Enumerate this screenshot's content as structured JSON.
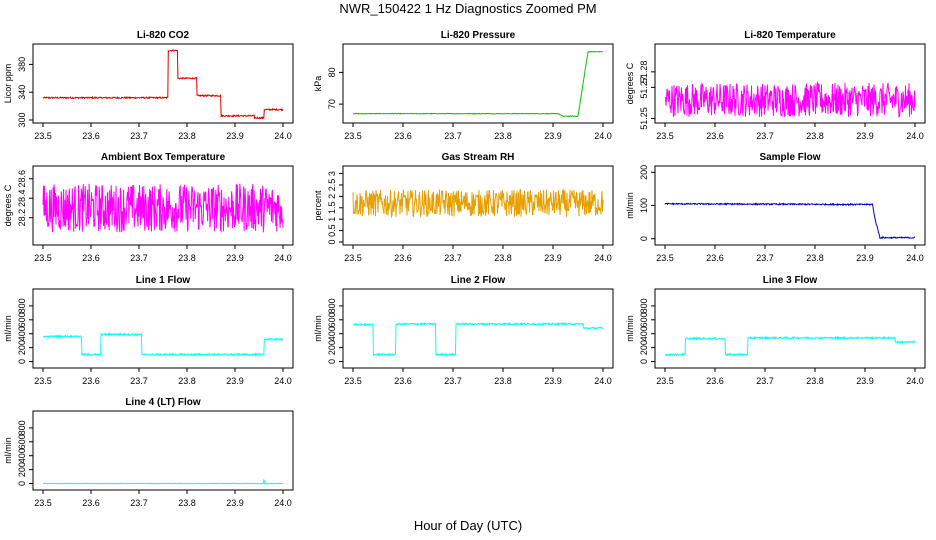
{
  "figure": {
    "title": "NWR_150422  1 Hz Diagnostics Zoomed PM",
    "xlabel": "Hour of Day (UTC)"
  },
  "colors": {
    "red": "#e00000",
    "green": "#00c800",
    "magenta": "#ff00ff",
    "orange": "#e6a000",
    "blue": "#0000cc",
    "cyan": "#00ffff"
  },
  "chart_data": [
    {
      "id": "co2",
      "type": "line",
      "title": "Li-820 CO2",
      "ylabel": "Licor ppm",
      "color": "red",
      "xlim": [
        23.5,
        24.0
      ],
      "ylim": [
        300,
        405
      ],
      "xticks": [
        "23.5",
        "23.6",
        "23.7",
        "23.8",
        "23.9",
        "24.0"
      ],
      "yticks": [
        300,
        340,
        380
      ],
      "x": [
        23.5,
        23.76,
        23.761,
        23.78,
        23.781,
        23.82,
        23.821,
        23.87,
        23.871,
        23.94,
        23.941,
        23.96,
        23.961,
        24.0
      ],
      "y": [
        332,
        332,
        400,
        400,
        360,
        360,
        335,
        335,
        306,
        306,
        303,
        303,
        315,
        315
      ],
      "noise": 1
    },
    {
      "id": "pressure",
      "type": "line",
      "title": "Li-820 Pressure",
      "ylabel": "kPa",
      "color": "green",
      "xlim": [
        23.5,
        24.0
      ],
      "ylim": [
        65,
        88
      ],
      "xticks": [
        "23.5",
        "23.6",
        "23.7",
        "23.8",
        "23.9",
        "24.0"
      ],
      "yticks": [
        70,
        80
      ],
      "x": [
        23.5,
        23.91,
        23.92,
        23.95,
        23.97,
        24.0
      ],
      "y": [
        67.0,
        67.0,
        66.2,
        66.2,
        86.5,
        86.5
      ],
      "noise": 0.1
    },
    {
      "id": "li820-temp",
      "type": "line",
      "title": "Li-820 Temperature",
      "ylabel": "degrees C",
      "color": "magenta",
      "xlim": [
        23.5,
        24.0
      ],
      "ylim": [
        51.249,
        51.296
      ],
      "xticks": [
        "23.5",
        "23.6",
        "23.7",
        "23.8",
        "23.9",
        "24.0"
      ],
      "yticks": [
        51.25,
        51.27,
        51.28
      ],
      "x": [
        23.5,
        24.0
      ],
      "y": [
        51.262,
        51.262
      ],
      "noise": 0.011
    },
    {
      "id": "box-temp",
      "type": "line",
      "title": "Ambient Box Temperature",
      "ylabel": "degrees C",
      "color": "magenta",
      "xlim": [
        23.5,
        24.0
      ],
      "ylim": [
        27.95,
        28.7
      ],
      "xticks": [
        "23.5",
        "23.6",
        "23.7",
        "23.8",
        "23.9",
        "24.0"
      ],
      "yticks": [
        28.2,
        28.4,
        28.6
      ],
      "x": [
        23.5,
        24.0
      ],
      "y": [
        28.3,
        28.3
      ],
      "noise": 0.25
    },
    {
      "id": "rh",
      "type": "line",
      "title": "Gas Stream RH",
      "ylabel": "percent",
      "color": "orange",
      "xlim": [
        23.5,
        24.0
      ],
      "ylim": [
        0,
        3.2
      ],
      "xticks": [
        "23.5",
        "23.6",
        "23.7",
        "23.8",
        "23.9",
        "24.0"
      ],
      "yticks": [
        0.0,
        0.5,
        1.0,
        1.5,
        2.0,
        2.5,
        3.0
      ],
      "x": [
        23.5,
        24.0
      ],
      "y": [
        1.7,
        1.7
      ],
      "noise": 0.6
    },
    {
      "id": "sample-flow",
      "type": "line",
      "title": "Sample Flow",
      "ylabel": "ml/min",
      "color": "blue",
      "xlim": [
        23.5,
        24.0
      ],
      "ylim": [
        -10,
        210
      ],
      "xticks": [
        "23.5",
        "23.6",
        "23.7",
        "23.8",
        "23.9",
        "24.0"
      ],
      "yticks": [
        0,
        100,
        200
      ],
      "x": [
        23.5,
        23.915,
        23.92,
        23.93,
        24.0
      ],
      "y": [
        105,
        103,
        60,
        3,
        3
      ],
      "noise": 2
    },
    {
      "id": "line1",
      "type": "line",
      "title": "Line 1 Flow",
      "ylabel": "ml/min",
      "color": "cyan",
      "xlim": [
        23.5,
        24.0
      ],
      "ylim": [
        -50,
        1000
      ],
      "xticks": [
        "23.5",
        "23.6",
        "23.7",
        "23.8",
        "23.9",
        "24.0"
      ],
      "yticks": [
        0,
        200,
        400,
        600,
        800
      ],
      "x": [
        23.5,
        23.58,
        23.581,
        23.62,
        23.621,
        23.705,
        23.706,
        23.96,
        23.961,
        24.0
      ],
      "y": [
        360,
        360,
        100,
        100,
        390,
        390,
        100,
        100,
        320,
        320
      ],
      "noise": 12
    },
    {
      "id": "line2",
      "type": "line",
      "title": "Line 2 Flow",
      "ylabel": "ml/min",
      "color": "cyan",
      "xlim": [
        23.5,
        24.0
      ],
      "ylim": [
        -50,
        1000
      ],
      "xticks": [
        "23.5",
        "23.6",
        "23.7",
        "23.8",
        "23.9",
        "24.0"
      ],
      "yticks": [
        0,
        200,
        400,
        600,
        800
      ],
      "x": [
        23.5,
        23.54,
        23.541,
        23.585,
        23.586,
        23.665,
        23.666,
        23.705,
        23.706,
        23.96,
        23.961,
        24.0
      ],
      "y": [
        530,
        530,
        100,
        100,
        540,
        540,
        100,
        100,
        540,
        540,
        480,
        480
      ],
      "noise": 12
    },
    {
      "id": "line3",
      "type": "line",
      "title": "Line 3 Flow",
      "ylabel": "ml/min",
      "color": "cyan",
      "xlim": [
        23.5,
        24.0
      ],
      "ylim": [
        -50,
        1000
      ],
      "xticks": [
        "23.5",
        "23.6",
        "23.7",
        "23.8",
        "23.9",
        "24.0"
      ],
      "yticks": [
        0,
        200,
        400,
        600,
        800
      ],
      "x": [
        23.5,
        23.54,
        23.541,
        23.62,
        23.621,
        23.665,
        23.666,
        23.96,
        23.961,
        24.0
      ],
      "y": [
        100,
        100,
        330,
        330,
        100,
        100,
        340,
        340,
        280,
        280
      ],
      "noise": 12
    },
    {
      "id": "line4",
      "type": "line",
      "title": "Line 4 (LT) Flow",
      "ylabel": "ml/min",
      "color": "cyan",
      "xlim": [
        23.5,
        24.0
      ],
      "ylim": [
        -50,
        1000
      ],
      "xticks": [
        "23.5",
        "23.6",
        "23.7",
        "23.8",
        "23.9",
        "24.0"
      ],
      "yticks": [
        0,
        200,
        400,
        600,
        800
      ],
      "x": [
        23.5,
        23.959,
        23.96,
        23.962,
        24.0
      ],
      "y": [
        0,
        0,
        60,
        0,
        0
      ],
      "noise": 3
    }
  ]
}
